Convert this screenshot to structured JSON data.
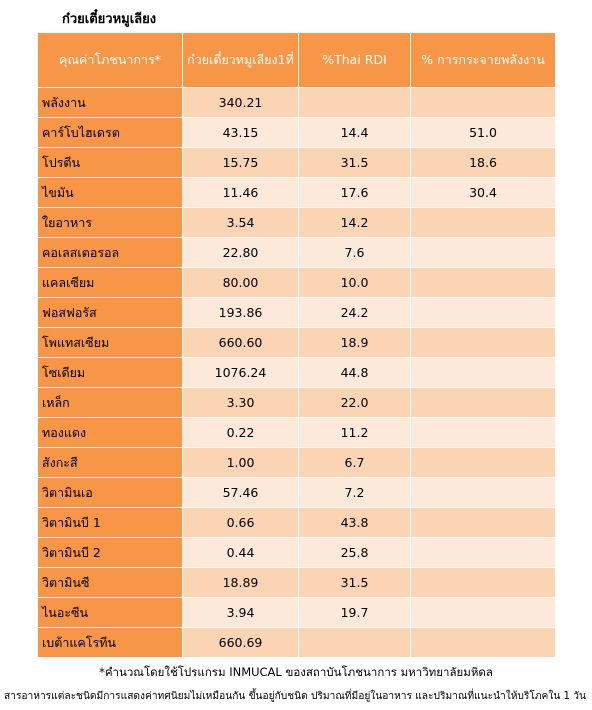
{
  "title": "ก๋วยเตี๋ยวหมูเลียง",
  "table": {
    "header": [
      "คุณค่าโภชนาการ*",
      "ก๋วยเตี๋ยวหมูเลียง1ที่",
      "%Thai RDI",
      "% การกระจายพลังงาน"
    ],
    "rows": [
      [
        "พลังงาน",
        "340.21",
        null,
        null
      ],
      [
        "คาร์โบไฮเดรต",
        "43.15",
        "14.4",
        "51.0"
      ],
      [
        "โปรตีน",
        "15.75",
        "31.5",
        "18.6"
      ],
      [
        "ไขมัน",
        "11.46",
        "17.6",
        "30.4"
      ],
      [
        "ใยอาหาร",
        "3.54",
        "14.2",
        null
      ],
      [
        "คอเลสเตอรอล",
        "22.80",
        "7.6",
        null
      ],
      [
        "แคลเซียม",
        "80.00",
        "10.0",
        null
      ],
      [
        "ฟอสฟอรัส",
        "193.86",
        "24.2",
        null
      ],
      [
        "โพแทสเซียม",
        "660.60",
        "18.9",
        null
      ],
      [
        "โซเดียม",
        "1076.24",
        "44.8",
        null
      ],
      [
        "เหล็ก",
        "3.30",
        "22.0",
        null
      ],
      [
        "ทองแดง",
        "0.22",
        "11.2",
        null
      ],
      [
        "สังกะสี",
        "1.00",
        "6.7",
        null
      ],
      [
        "วิตามินเอ",
        "57.46",
        "7.2",
        null
      ],
      [
        "วิตามินบี 1",
        "0.66",
        "43.8",
        null
      ],
      [
        "วิตามินบี 2",
        "0.44",
        "25.8",
        null
      ],
      [
        "วิตามินซี",
        "18.89",
        "31.5",
        null
      ],
      [
        "ไนอะซีน",
        "3.94",
        "19.7",
        null
      ],
      [
        "เบต้าแคโรทีน",
        "660.69",
        null,
        null
      ]
    ]
  },
  "footnotes": [
    "*คำนวณโดยใช้โปรแกรม INMUCAL ของสถาบันโภชนาการ มหาวิทยาลัยมหิดล",
    "สารอาหารแต่ละชนิดมีการแสดงค่าทศนิยมไม่เหมือนกัน ขึ้นอยู่กับชนิด ปริมาณที่มีอยู่ในอาหาร และปริมาณที่แนะนำให้บริโภคใน 1 วัน"
  ]
}
